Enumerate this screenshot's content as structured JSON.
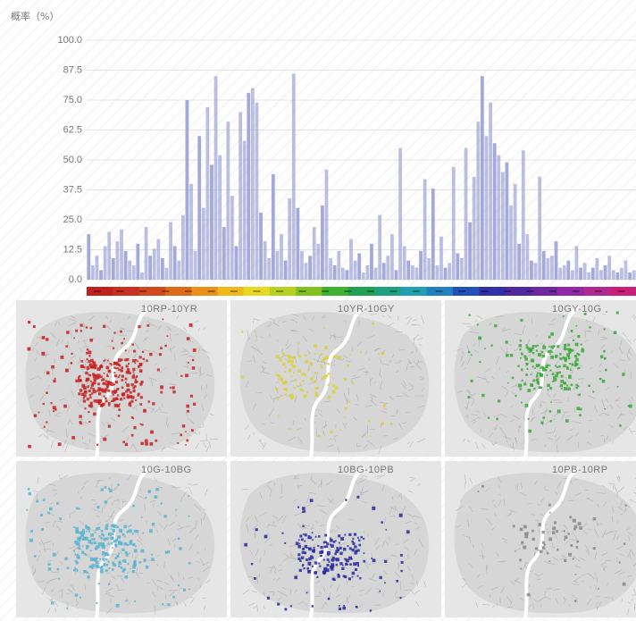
{
  "chart_data": {
    "type": "bar",
    "ylabel": "概率（%）",
    "ylim": [
      0,
      100
    ],
    "yticks": [
      "100.0",
      "87.5",
      "75.0",
      "62.5",
      "50.0",
      "37.5",
      "25.0",
      "12.5",
      "0.0"
    ],
    "grid": true,
    "bar_color": "#9ea4d8",
    "values": [
      19,
      6,
      10,
      4,
      14,
      20,
      9,
      16,
      21,
      12,
      8,
      6,
      15,
      3,
      22,
      10,
      13,
      17,
      9,
      5,
      24,
      14,
      8,
      27,
      75,
      40,
      12,
      60,
      30,
      72,
      48,
      85,
      52,
      22,
      66,
      35,
      14,
      70,
      58,
      78,
      80,
      74,
      28,
      16,
      9,
      44,
      12,
      19,
      8,
      34,
      86,
      30,
      12,
      7,
      10,
      22,
      15,
      31,
      46,
      9,
      6,
      12,
      5,
      4,
      17,
      8,
      11,
      3,
      6,
      15,
      5,
      27,
      7,
      10,
      19,
      4,
      55,
      14,
      8,
      6,
      5,
      12,
      42,
      9,
      38,
      6,
      18,
      5,
      7,
      47,
      11,
      9,
      55,
      24,
      43,
      66,
      85,
      60,
      74,
      57,
      52,
      45,
      49,
      31,
      40,
      15,
      54,
      19,
      8,
      7,
      43,
      12,
      9,
      10,
      16,
      5,
      6,
      8,
      4,
      14,
      5,
      7,
      3,
      5,
      9,
      4,
      6,
      10,
      4,
      3,
      5,
      8,
      3,
      4
    ],
    "color_strip": [
      "#c02020",
      "#c83020",
      "#d04820",
      "#dc6a1a",
      "#e89018",
      "#f0b818",
      "#e8d820",
      "#b8d020",
      "#80c020",
      "#40b030",
      "#20a050",
      "#20a080",
      "#20a0b0",
      "#2080c0",
      "#2050b8",
      "#3030a8",
      "#5028a0",
      "#7028a0",
      "#9028a8",
      "#b02890",
      "#c82078"
    ]
  },
  "maps": [
    {
      "title": "10RP-10YR",
      "color": "#c81e1e",
      "density": 340,
      "center": [
        0.44,
        0.52
      ]
    },
    {
      "title": "10YR-10GY",
      "color": "#dcd040",
      "density": 120,
      "center": [
        0.36,
        0.48
      ]
    },
    {
      "title": "10GY-10G",
      "color": "#3aa83a",
      "density": 220,
      "center": [
        0.5,
        0.42
      ]
    },
    {
      "title": "10G-10BG",
      "color": "#5ab4d0",
      "density": 260,
      "center": [
        0.42,
        0.55
      ]
    },
    {
      "title": "10BG-10PB",
      "color": "#2828a0",
      "density": 200,
      "center": [
        0.46,
        0.6
      ]
    },
    {
      "title": "10PB-10RP",
      "color": "#888888",
      "density": 60,
      "center": [
        0.5,
        0.5
      ]
    }
  ]
}
